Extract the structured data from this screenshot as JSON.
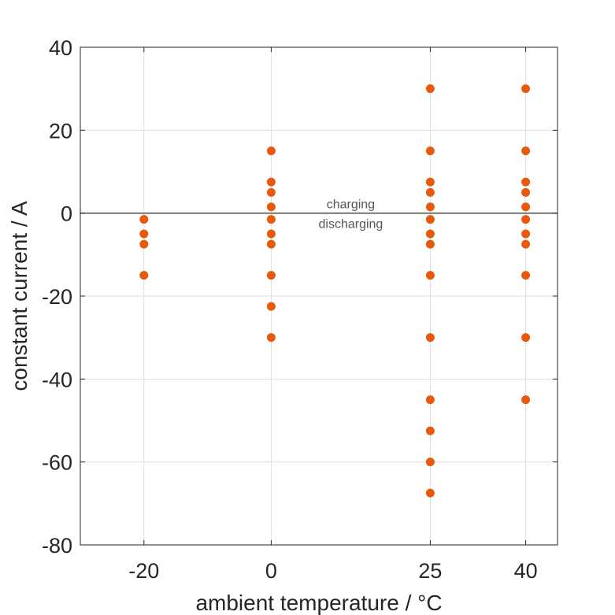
{
  "chart_data": {
    "type": "scatter",
    "xlabel": "ambient temperature / °C",
    "ylabel": "constant current / A",
    "xlim": [
      -30,
      45
    ],
    "ylim": [
      -80,
      40
    ],
    "xticks": [
      -20,
      0,
      25,
      40
    ],
    "xtick_labels": [
      "-20",
      "0",
      "25",
      "40"
    ],
    "yticks": [
      40,
      20,
      0,
      -20,
      -40,
      -60,
      -80
    ],
    "ytick_labels": [
      "40",
      "20",
      "0",
      "-20",
      "-40",
      "-60",
      "-80"
    ],
    "grid": true,
    "reference_line": 0,
    "annotations": [
      "charging",
      "discharging"
    ],
    "marker_color": "#E8590C",
    "points": [
      {
        "x": -20,
        "y": -1.5
      },
      {
        "x": -20,
        "y": -5
      },
      {
        "x": -20,
        "y": -7.5
      },
      {
        "x": -20,
        "y": -15
      },
      {
        "x": 0,
        "y": 15
      },
      {
        "x": 0,
        "y": 7.5
      },
      {
        "x": 0,
        "y": 5
      },
      {
        "x": 0,
        "y": 1.5
      },
      {
        "x": 0,
        "y": -1.5
      },
      {
        "x": 0,
        "y": -5
      },
      {
        "x": 0,
        "y": -7.5
      },
      {
        "x": 0,
        "y": -15
      },
      {
        "x": 0,
        "y": -22.5
      },
      {
        "x": 0,
        "y": -30
      },
      {
        "x": 25,
        "y": 30
      },
      {
        "x": 25,
        "y": 15
      },
      {
        "x": 25,
        "y": 7.5
      },
      {
        "x": 25,
        "y": 5
      },
      {
        "x": 25,
        "y": 1.5
      },
      {
        "x": 25,
        "y": -1.5
      },
      {
        "x": 25,
        "y": -5
      },
      {
        "x": 25,
        "y": -7.5
      },
      {
        "x": 25,
        "y": -15
      },
      {
        "x": 25,
        "y": -30
      },
      {
        "x": 25,
        "y": -45
      },
      {
        "x": 25,
        "y": -52.5
      },
      {
        "x": 25,
        "y": -60
      },
      {
        "x": 25,
        "y": -67.5
      },
      {
        "x": 40,
        "y": 30
      },
      {
        "x": 40,
        "y": 15
      },
      {
        "x": 40,
        "y": 7.5
      },
      {
        "x": 40,
        "y": 5
      },
      {
        "x": 40,
        "y": 1.5
      },
      {
        "x": 40,
        "y": -1.5
      },
      {
        "x": 40,
        "y": -5
      },
      {
        "x": 40,
        "y": -7.5
      },
      {
        "x": 40,
        "y": -15
      },
      {
        "x": 40,
        "y": -30
      },
      {
        "x": 40,
        "y": -45
      }
    ]
  }
}
